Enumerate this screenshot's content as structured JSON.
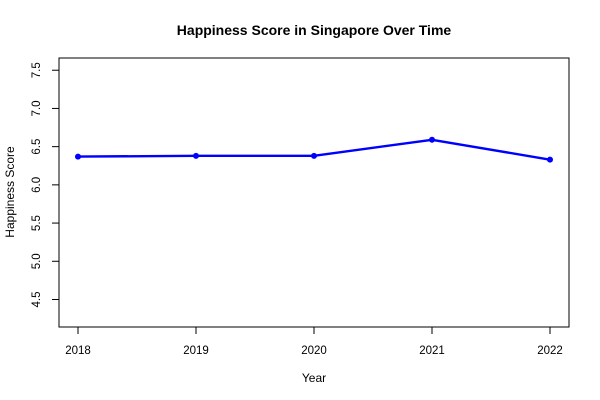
{
  "chart_data": {
    "type": "line",
    "title": "Happiness Score in Singapore Over Time",
    "xlabel": "Year",
    "ylabel": "Happiness Score",
    "categories": [
      "2018",
      "2019",
      "2020",
      "2021",
      "2022"
    ],
    "series": [
      {
        "values": [
          6.37,
          6.38,
          6.38,
          6.59,
          6.33
        ],
        "color": "#0000FF"
      }
    ],
    "x_ticks": [
      "2018",
      "2019",
      "2020",
      "2021",
      "2022"
    ],
    "y_ticks": [
      "4.5",
      "5.0",
      "5.5",
      "6.0",
      "6.5",
      "7.0",
      "7.5"
    ],
    "ylim": [
      4.14,
      7.66
    ],
    "grid": false,
    "legend": "none"
  }
}
